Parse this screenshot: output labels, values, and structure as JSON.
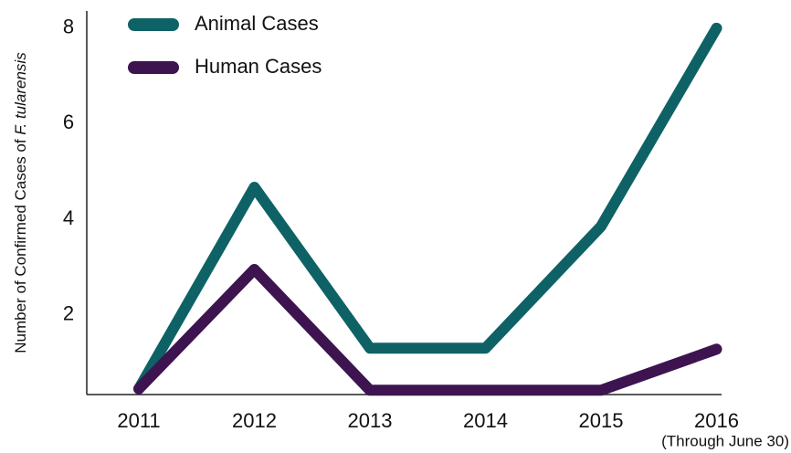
{
  "chart_data": {
    "type": "line",
    "y_label": "Number of Confirmed Cases of ",
    "y_label_species": "F. tularensis",
    "categories": [
      "2011",
      "2012",
      "2013",
      "2014",
      "2015",
      "2016"
    ],
    "annotation": "(Through June 30)",
    "series": [
      {
        "name": "Animal Cases",
        "color": "#0e6266",
        "values": [
          0.45,
          4.67,
          1.3,
          1.3,
          3.85,
          8
        ]
      },
      {
        "name": "Human Cases",
        "color": "#3d1450",
        "values": [
          0.45,
          2.95,
          0.42,
          0.42,
          0.42,
          1.28
        ]
      }
    ],
    "ylim": [
      0.33,
      8.36
    ],
    "yticks": [
      2,
      4,
      6,
      8
    ],
    "grid": false,
    "legend": "top-left"
  }
}
